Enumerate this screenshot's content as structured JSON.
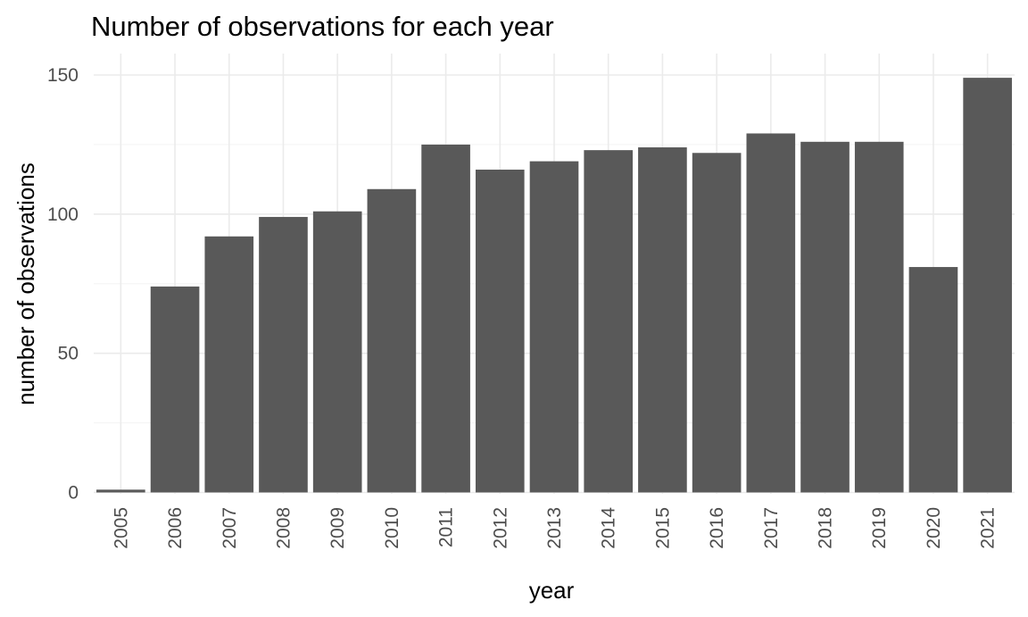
{
  "chart_data": {
    "type": "bar",
    "title": "Number of observations for each year",
    "xlabel": "year",
    "ylabel": "number of observations",
    "categories": [
      "2005",
      "2006",
      "2007",
      "2008",
      "2009",
      "2010",
      "2011",
      "2012",
      "2013",
      "2014",
      "2015",
      "2016",
      "2017",
      "2018",
      "2019",
      "2020",
      "2021"
    ],
    "values": [
      1,
      74,
      92,
      99,
      101,
      109,
      125,
      116,
      119,
      123,
      124,
      122,
      129,
      126,
      126,
      81,
      149
    ],
    "yticks": [
      "0",
      "50",
      "100",
      "150"
    ],
    "ylim": [
      0,
      150
    ],
    "grid": true,
    "legend": "none",
    "colors": {
      "bar": "#595959",
      "grid": "#ebebeb",
      "tick_text": "#4d4d4d"
    }
  }
}
